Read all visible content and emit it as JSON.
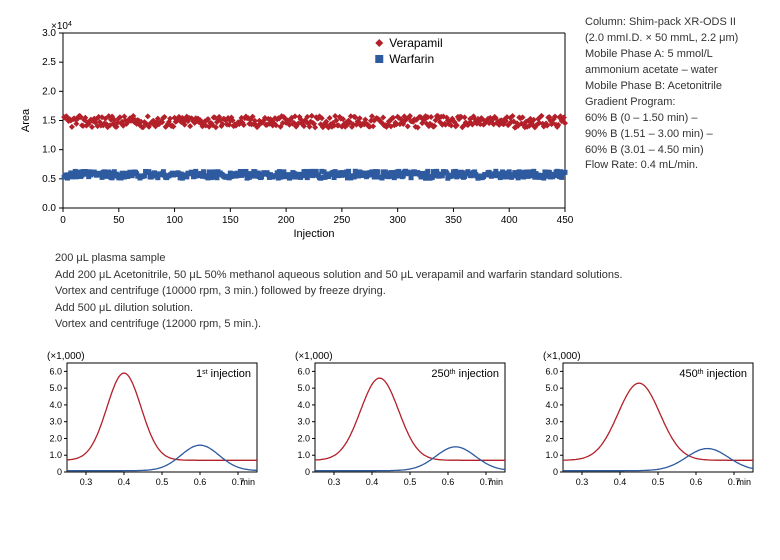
{
  "scatter": {
    "type": "scatter",
    "multiplier_label": "×10",
    "multiplier_exp": "4",
    "ylabel": "Area",
    "xlabel": "Injection",
    "xlim": [
      0,
      450
    ],
    "ylim": [
      0,
      3.0
    ],
    "xticks": [
      0,
      50,
      100,
      150,
      200,
      250,
      300,
      350,
      400,
      450
    ],
    "yticks": [
      0,
      0.5,
      1.0,
      1.5,
      2.0,
      2.5,
      3.0
    ],
    "legend": {
      "series1": {
        "label": "Verapamil",
        "color": "#b32029",
        "marker": "diamond"
      },
      "series2": {
        "label": "Warfarin",
        "color": "#2e5aa0",
        "marker": "square"
      }
    },
    "series1": {
      "color": "#b32029",
      "marker": "diamond",
      "n_points": 450,
      "y_base": 1.48,
      "y_noise": 0.1
    },
    "series2": {
      "color": "#2e5aa0",
      "marker": "square",
      "n_points": 450,
      "y_base": 0.57,
      "y_noise": 0.06
    },
    "axis_color": "#000000",
    "background_color": "#ffffff"
  },
  "conditions": {
    "lines": [
      "Column: Shim-pack XR-ODS II",
      "(2.0 mmI.D. × 50 mmL, 2.2 μm)",
      "Mobile Phase A: 5 mmol/L",
      "ammonium acetate – water",
      "Mobile Phase B: Acetonitrile",
      "Gradient Program:",
      "60% B (0 – 1.50 min) –",
      "90% B (1.51 – 3.00 min) –",
      "60% B (3.01 – 4.50 min)",
      "Flow Rate: 0.4 mL/min."
    ]
  },
  "protocol": {
    "lines": [
      "200 μL plasma sample",
      "Add 200 μL Acetonitrile, 50 μL 50% methanol aqueous solution and 50 μL verapamil and warfarin standard solutions.",
      "Vortex and centrifuge (10000 rpm, 3 min.) followed by freeze drying.",
      "Add 500 μL dilution solution.",
      "Vortex and centrifuge (12000 rpm, 5 min.)."
    ]
  },
  "chromatograms": {
    "multiplier_label": "(×1,000)",
    "xlabel": "min",
    "xlim": [
      0.25,
      0.75
    ],
    "ylim": [
      0,
      6.5
    ],
    "xticks": [
      0.3,
      0.4,
      0.5,
      0.6,
      0.7
    ],
    "yticks": [
      0,
      1.0,
      2.0,
      3.0,
      4.0,
      5.0,
      6.0
    ],
    "border_color": "#000000",
    "background_color": "#ffffff",
    "series_colors": {
      "red": "#b32029",
      "blue": "#2e5aa0"
    },
    "panels": [
      {
        "title_pre": "1",
        "title_ord": "st",
        "title_post": " injection",
        "red_peak": {
          "rt": 0.4,
          "height": 5.9,
          "width": 0.045,
          "baseline": 0.7
        },
        "blue_peak": {
          "rt": 0.6,
          "height": 1.6,
          "width": 0.05,
          "baseline": 0.08
        }
      },
      {
        "title_pre": "250",
        "title_ord": "th",
        "title_post": " injection",
        "red_peak": {
          "rt": 0.42,
          "height": 5.6,
          "width": 0.05,
          "baseline": 0.7
        },
        "blue_peak": {
          "rt": 0.62,
          "height": 1.5,
          "width": 0.052,
          "baseline": 0.08
        }
      },
      {
        "title_pre": "450",
        "title_ord": "th",
        "title_post": " injection",
        "red_peak": {
          "rt": 0.45,
          "height": 5.3,
          "width": 0.055,
          "baseline": 0.7
        },
        "blue_peak": {
          "rt": 0.63,
          "height": 1.4,
          "width": 0.055,
          "baseline": 0.08
        }
      }
    ]
  }
}
